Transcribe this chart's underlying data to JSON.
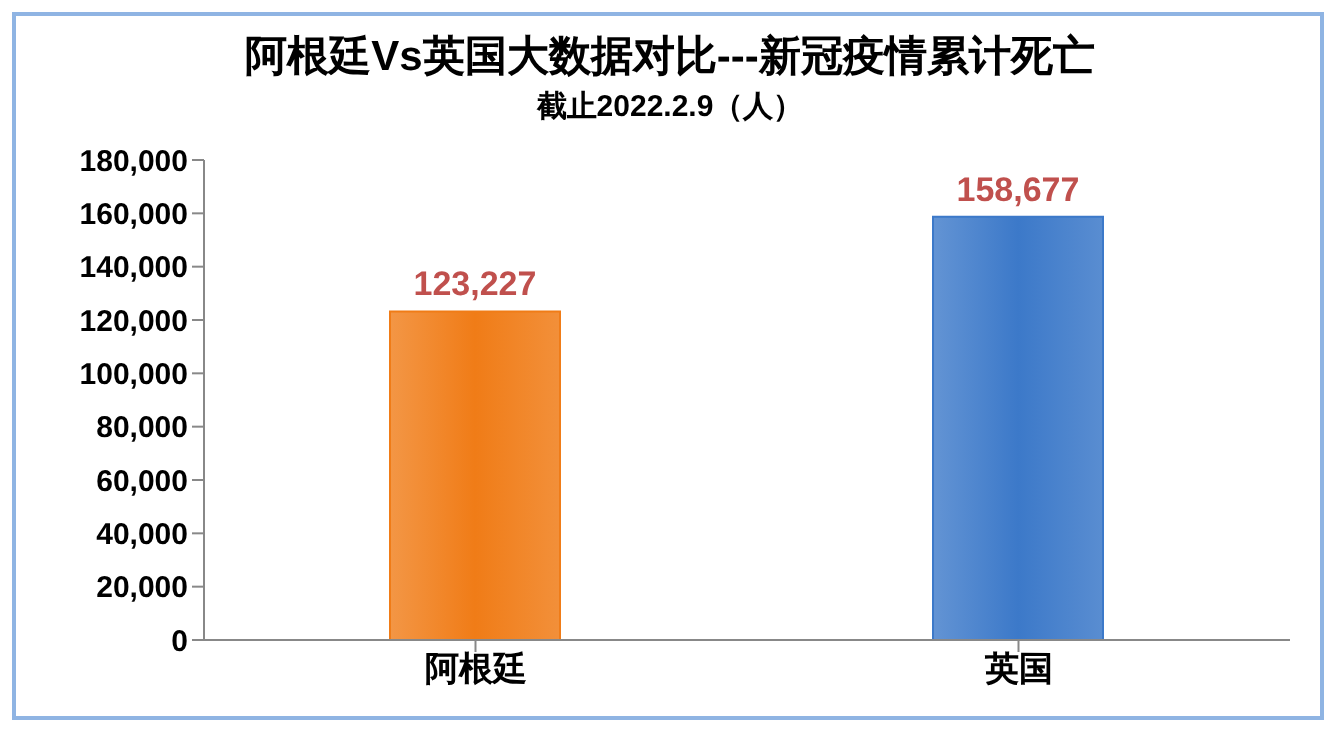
{
  "chart_data": {
    "type": "bar",
    "title": "阿根廷Vs英国大数据对比---新冠疫情累计死亡",
    "subtitle": "截止2022.2.9（人）",
    "categories": [
      "阿根廷",
      "英国"
    ],
    "values": [
      123227,
      158677
    ],
    "value_labels": [
      "123,227",
      "158,677"
    ],
    "colors": [
      "#f07c17",
      "#3c79c9"
    ],
    "ylim": [
      0,
      180000
    ],
    "yticks": [
      0,
      {
        "value": 20000,
        "label": "20,000"
      },
      {
        "value": 40000,
        "label": "40,000"
      },
      {
        "value": 60000,
        "label": "60,000"
      },
      {
        "value": 80000,
        "label": "80,000"
      },
      {
        "value": 100000,
        "label": "100,000"
      },
      {
        "value": 120000,
        "label": "120,000"
      },
      {
        "value": 140000,
        "label": "140,000"
      },
      {
        "value": 160000,
        "label": "160,000"
      },
      {
        "value": 180000,
        "label": "180,000"
      }
    ],
    "grid": false
  }
}
